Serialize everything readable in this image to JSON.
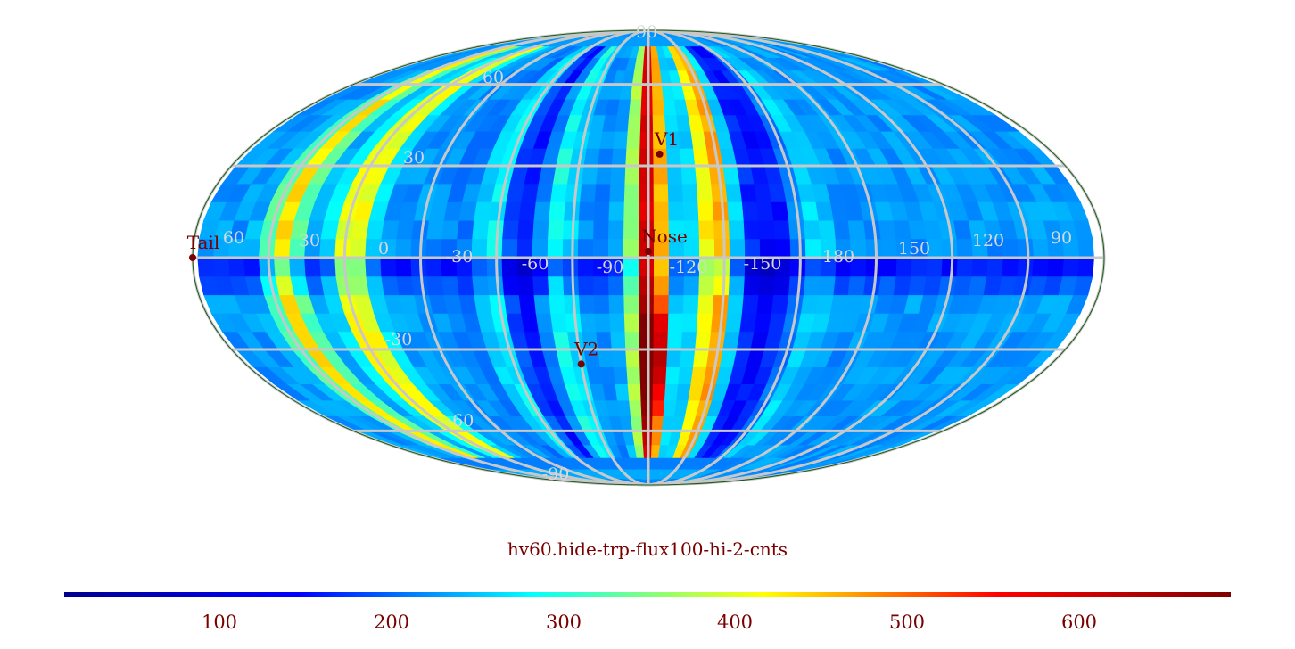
{
  "title": "hv60.hide-trp-flux100-hi-2-cnts",
  "colorbar": {
    "ticks": [
      "100",
      "200",
      "300",
      "400",
      "500",
      "600"
    ],
    "colormap": [
      "#00008f",
      "#0000ff",
      "#00ffff",
      "#ffff00",
      "#ff0000",
      "#800000"
    ]
  },
  "grid": {
    "color": "#c8c8c8",
    "lat_labels": [
      "90",
      "60",
      "30",
      "-30",
      "-60",
      "-90"
    ],
    "lon_labels": [
      "60",
      "30",
      "0",
      "-30",
      "-60",
      "-90",
      "-120",
      "-150",
      "180",
      "150",
      "120",
      "90"
    ]
  },
  "markers": [
    {
      "label": "V1",
      "lon": -105,
      "lat": 34
    },
    {
      "label": "Nose",
      "lon": -100,
      "lat": 2
    },
    {
      "label": "V2",
      "lon": -70,
      "lat": -35
    },
    {
      "label": "Tail",
      "lon": 80,
      "lat": 0
    }
  ],
  "marker_color": "#7a0000"
}
